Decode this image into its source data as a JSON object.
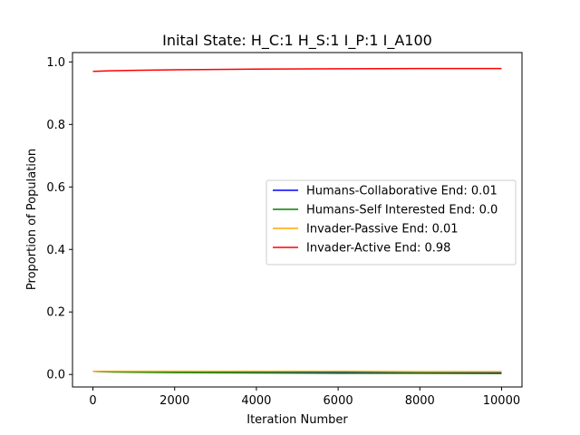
{
  "chart_data": {
    "type": "line",
    "title": "Inital State: H_C:1 H_S:1 I_P:1 I_A100",
    "xlabel": "Iteration Number",
    "ylabel": "Proportion of Population",
    "xlim": [
      -500,
      10500
    ],
    "ylim": [
      -0.04,
      1.03
    ],
    "xticks": [
      0,
      2000,
      4000,
      6000,
      8000,
      10000
    ],
    "xtick_labels": [
      "0",
      "2000",
      "4000",
      "6000",
      "8000",
      "10000"
    ],
    "yticks": [
      0.0,
      0.2,
      0.4,
      0.6,
      0.8,
      1.0
    ],
    "ytick_labels": [
      "0.0",
      "0.2",
      "0.4",
      "0.6",
      "0.8",
      "1.0"
    ],
    "grid": false,
    "legend_position": "center-right",
    "series": [
      {
        "name": "Humans-Collaborative End: 0.01",
        "color": "#0000ff",
        "x": [
          0,
          500,
          1000,
          2000,
          4000,
          6000,
          8000,
          10000
        ],
        "y": [
          0.01,
          0.009,
          0.009,
          0.008,
          0.007,
          0.006,
          0.006,
          0.006
        ]
      },
      {
        "name": "Humans-Self Interested End: 0.0",
        "color": "#008000",
        "x": [
          0,
          500,
          1000,
          2000,
          4000,
          6000,
          8000,
          10000
        ],
        "y": [
          0.01,
          0.008,
          0.007,
          0.006,
          0.005,
          0.004,
          0.004,
          0.003
        ]
      },
      {
        "name": "Invader-Passive End: 0.01",
        "color": "#ffa500",
        "x": [
          0,
          500,
          1000,
          2000,
          4000,
          6000,
          8000,
          10000
        ],
        "y": [
          0.01,
          0.01,
          0.01,
          0.01,
          0.01,
          0.01,
          0.009,
          0.009
        ]
      },
      {
        "name": "Invader-Active End: 0.98",
        "color": "#ff0000",
        "x": [
          0,
          500,
          1000,
          2000,
          4000,
          6000,
          8000,
          10000
        ],
        "y": [
          0.97,
          0.972,
          0.973,
          0.975,
          0.977,
          0.978,
          0.979,
          0.979
        ]
      }
    ]
  }
}
